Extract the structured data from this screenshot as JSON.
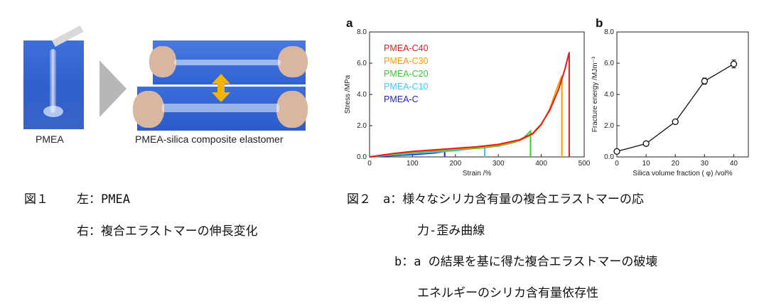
{
  "figure1": {
    "left_caption": "PMEA",
    "right_caption": "PMEA-silica composite elastomer",
    "caption_label": "図１",
    "caption_left": "左：PMEA",
    "caption_right": "右：複合エラストマーの伸長変化"
  },
  "figure2": {
    "caption_line1": "図２　a：様々なシリカ含有量の複合エラストマーの応",
    "caption_line2": "力-歪み曲線",
    "caption_line3": "b：a の結果を基に得た複合エラストマーの破壊",
    "caption_line4": "エネルギーのシリカ含有量依存性"
  },
  "chart_data": [
    {
      "panel": "a",
      "type": "line",
      "xlabel": "Strain /%",
      "ylabel": "Stress /MPa",
      "xlim": [
        0,
        500
      ],
      "ylim": [
        0,
        8
      ],
      "xticks": [
        "0",
        "100",
        "200",
        "300",
        "400",
        "500"
      ],
      "yticks": [
        "0.0",
        "2.0",
        "4.0",
        "6.0",
        "8.0"
      ],
      "legend_position": "top-left",
      "series": [
        {
          "name": "PMEA-C40",
          "color": "#e41a1c",
          "x": [
            0,
            50,
            100,
            150,
            200,
            250,
            300,
            350,
            380,
            400,
            420,
            440,
            455,
            465,
            465
          ],
          "y": [
            0,
            0.2,
            0.35,
            0.45,
            0.55,
            0.65,
            0.8,
            1.1,
            1.5,
            2.1,
            3.0,
            4.3,
            5.6,
            6.7,
            0
          ]
        },
        {
          "name": "PMEA-C30",
          "color": "#ff9900",
          "x": [
            0,
            50,
            100,
            150,
            200,
            250,
            300,
            350,
            380,
            400,
            420,
            438,
            448,
            448
          ],
          "y": [
            0,
            0.18,
            0.32,
            0.42,
            0.5,
            0.6,
            0.75,
            1.05,
            1.45,
            2.05,
            3.1,
            4.5,
            5.2,
            0
          ]
        },
        {
          "name": "PMEA-C20",
          "color": "#33cc33",
          "x": [
            0,
            50,
            100,
            150,
            200,
            250,
            300,
            340,
            360,
            375,
            375
          ],
          "y": [
            0,
            0.15,
            0.28,
            0.38,
            0.46,
            0.55,
            0.7,
            0.95,
            1.25,
            1.65,
            0
          ]
        },
        {
          "name": "PMEA-C10",
          "color": "#33ccff",
          "x": [
            0,
            50,
            100,
            150,
            200,
            250,
            268,
            268
          ],
          "y": [
            0,
            0.12,
            0.22,
            0.3,
            0.4,
            0.58,
            0.7,
            0
          ]
        },
        {
          "name": "PMEA-C",
          "color": "#2222cc",
          "x": [
            0,
            50,
            100,
            150,
            175,
            175
          ],
          "y": [
            0,
            0.08,
            0.15,
            0.25,
            0.35,
            0
          ]
        }
      ]
    },
    {
      "panel": "b",
      "type": "scatter",
      "xlabel": "Silica volume fraction ( φ) /vol%",
      "ylabel": "Fracture energy /MJm⁻³",
      "xlim": [
        0,
        45
      ],
      "ylim": [
        0,
        8
      ],
      "xticks": [
        "0",
        "10",
        "20",
        "30",
        "40"
      ],
      "yticks": [
        "0.0",
        "2.0",
        "4.0",
        "6.0",
        "8.0"
      ],
      "x": [
        0,
        10,
        20,
        30,
        40
      ],
      "values": [
        0.35,
        0.85,
        2.25,
        4.85,
        5.95
      ],
      "error": [
        0.1,
        0.1,
        0.1,
        0.2,
        0.25
      ]
    }
  ]
}
